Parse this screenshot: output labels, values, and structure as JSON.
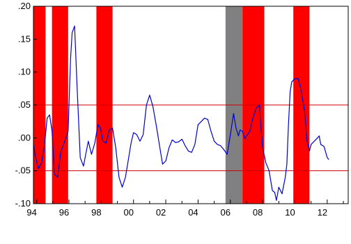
{
  "chart_data": {
    "type": "line",
    "title": "",
    "xlabel": "",
    "ylabel": "",
    "xlim": [
      1993.8,
      2013.3
    ],
    "ylim": [
      -0.1,
      0.2
    ],
    "y_ticks": [
      {
        "value": 0.2,
        "label": ".20"
      },
      {
        "value": 0.15,
        "label": ".15"
      },
      {
        "value": 0.1,
        "label": ".10"
      },
      {
        "value": 0.05,
        "label": ".05"
      },
      {
        "value": 0.0,
        "label": ".00"
      },
      {
        "value": -0.05,
        "label": "-.05"
      },
      {
        "value": -0.1,
        "label": "-.10"
      }
    ],
    "x_ticks": [
      {
        "value": 1994,
        "label": "94"
      },
      {
        "value": 1996,
        "label": "96"
      },
      {
        "value": 1998,
        "label": "98"
      },
      {
        "value": 2000,
        "label": "00"
      },
      {
        "value": 2002,
        "label": "02"
      },
      {
        "value": 2004,
        "label": "04"
      },
      {
        "value": 2006,
        "label": "06"
      },
      {
        "value": 2008,
        "label": "08"
      },
      {
        "value": 2010,
        "label": "10"
      },
      {
        "value": 2012,
        "label": "12"
      }
    ],
    "threshold_lines": [
      0.05,
      -0.05
    ],
    "shaded_bands": [
      {
        "start": 1993.8,
        "end": 1994.55,
        "color": "#ff0000"
      },
      {
        "start": 1994.95,
        "end": 1995.95,
        "color": "#ff0000"
      },
      {
        "start": 1997.7,
        "end": 1998.7,
        "color": "#ff0000"
      },
      {
        "start": 2005.7,
        "end": 2006.75,
        "color": "#808080"
      },
      {
        "start": 2006.75,
        "end": 2008.1,
        "color": "#ff0000"
      },
      {
        "start": 2009.9,
        "end": 2010.9,
        "color": "#ff0000"
      }
    ],
    "series": [
      {
        "color": "#0000cc",
        "x": [
          1993.8,
          1993.9,
          1994.1,
          1994.3,
          1994.5,
          1994.65,
          1994.8,
          1994.95,
          1995.1,
          1995.3,
          1995.5,
          1995.7,
          1995.95,
          1996.1,
          1996.2,
          1996.35,
          1996.5,
          1996.7,
          1996.9,
          1997.0,
          1997.2,
          1997.4,
          1997.6,
          1997.8,
          1997.95,
          1998.1,
          1998.3,
          1998.5,
          1998.7,
          1998.9,
          1999.1,
          1999.3,
          1999.5,
          1999.7,
          1999.85,
          2000.0,
          2000.2,
          2000.4,
          2000.6,
          2000.8,
          2001.0,
          2001.2,
          2001.4,
          2001.6,
          2001.8,
          2002.0,
          2002.2,
          2002.4,
          2002.6,
          2002.8,
          2003.0,
          2003.2,
          2003.4,
          2003.6,
          2003.8,
          2004.0,
          2004.2,
          2004.4,
          2004.6,
          2004.8,
          2005.0,
          2005.2,
          2005.4,
          2005.6,
          2005.8,
          2006.0,
          2006.2,
          2006.35,
          2006.5,
          2006.6,
          2006.75,
          2006.9,
          2007.0,
          2007.2,
          2007.4,
          2007.6,
          2007.8,
          2007.9,
          2008.0,
          2008.2,
          2008.4,
          2008.6,
          2008.75,
          2008.85,
          2009.0,
          2009.2,
          2009.4,
          2009.5,
          2009.6,
          2009.7,
          2009.8,
          2010.0,
          2010.2,
          2010.4,
          2010.6,
          2010.75,
          2010.9,
          2011.0,
          2011.2,
          2011.4,
          2011.5,
          2011.6,
          2011.8,
          2012.0,
          2012.1
        ],
        "y": [
          -0.01,
          -0.025,
          -0.047,
          -0.038,
          -0.008,
          0.03,
          0.035,
          0.01,
          -0.055,
          -0.06,
          -0.02,
          -0.008,
          0.01,
          0.12,
          0.16,
          0.17,
          0.08,
          -0.03,
          -0.043,
          -0.03,
          -0.005,
          -0.025,
          -0.008,
          0.02,
          0.015,
          -0.005,
          -0.008,
          0.012,
          0.015,
          -0.015,
          -0.06,
          -0.075,
          -0.06,
          -0.03,
          -0.008,
          0.008,
          0.005,
          -0.005,
          0.005,
          0.05,
          0.065,
          0.048,
          0.02,
          -0.01,
          -0.04,
          -0.035,
          -0.015,
          -0.003,
          -0.007,
          -0.006,
          -0.002,
          -0.012,
          -0.02,
          -0.022,
          -0.01,
          0.02,
          0.025,
          0.03,
          0.028,
          0.01,
          -0.005,
          -0.01,
          -0.012,
          -0.018,
          -0.025,
          0.005,
          0.037,
          0.015,
          0.003,
          0.012,
          0.01,
          -0.002,
          0.003,
          0.01,
          0.03,
          0.045,
          0.05,
          0.015,
          -0.015,
          -0.038,
          -0.05,
          -0.08,
          -0.083,
          -0.095,
          -0.075,
          -0.085,
          -0.06,
          -0.04,
          0.02,
          0.07,
          0.085,
          0.09,
          0.09,
          0.07,
          0.04,
          -0.005,
          -0.02,
          -0.01,
          -0.005,
          0.0,
          0.003,
          -0.01,
          -0.013,
          -0.03,
          -0.033
        ]
      }
    ]
  }
}
